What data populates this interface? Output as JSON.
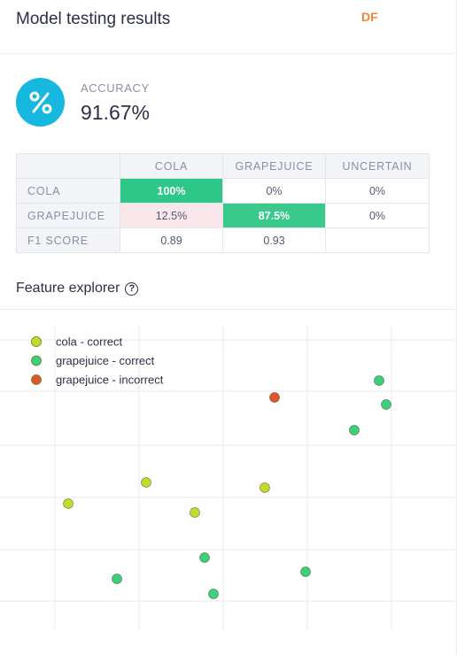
{
  "header": {
    "title": "Model testing results",
    "badge": "DF"
  },
  "accuracy": {
    "icon": "percent-icon",
    "icon_text": "%",
    "label": "ACCURACY",
    "value": "91.67%"
  },
  "confusion_matrix": {
    "columns": [
      "",
      "COLA",
      "GRAPEJUICE",
      "UNCERTAIN"
    ],
    "rows": [
      {
        "label": "COLA",
        "cells": [
          "100%",
          "0%",
          "0%"
        ]
      },
      {
        "label": "GRAPEJUICE",
        "cells": [
          "12.5%",
          "87.5%",
          "0%"
        ]
      },
      {
        "label": "F1 SCORE",
        "cells": [
          "0.89",
          "0.93",
          ""
        ]
      }
    ],
    "colors": {
      "correct": "#2ec78a",
      "incorrect": "#fbe6ec"
    }
  },
  "feature_explorer": {
    "title": "Feature explorer",
    "help_icon": "help-circle-icon",
    "legend": [
      {
        "label": "cola - correct",
        "color": "#c5db2b"
      },
      {
        "label": "grapejuice - correct",
        "color": "#3cd07a"
      },
      {
        "label": "grapejuice - incorrect",
        "color": "#e0552a"
      }
    ]
  },
  "chart_data": {
    "type": "scatter",
    "grid": true,
    "legend_placement": "top-left",
    "series": [
      {
        "name": "cola - correct",
        "color": "#c5db2b",
        "points": [
          [
            77,
            569
          ],
          [
            165,
            545
          ],
          [
            220,
            579
          ],
          [
            299,
            551
          ]
        ]
      },
      {
        "name": "grapejuice - correct",
        "color": "#3cd07a",
        "points": [
          [
            428,
            430
          ],
          [
            436,
            457
          ],
          [
            400,
            486
          ],
          [
            231,
            630
          ],
          [
            132,
            654
          ],
          [
            345,
            646
          ],
          [
            241,
            671
          ]
        ]
      },
      {
        "name": "grapejuice - incorrect",
        "color": "#e0552a",
        "points": [
          [
            310,
            449
          ]
        ]
      }
    ]
  }
}
